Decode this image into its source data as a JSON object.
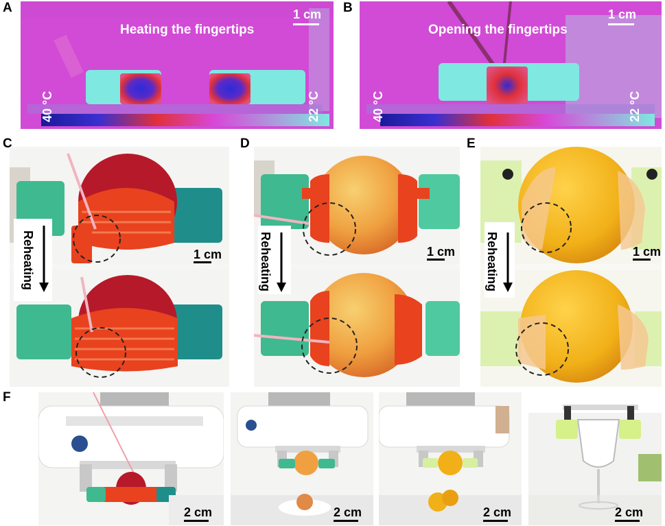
{
  "panels": {
    "A": {
      "label": "A",
      "title": "Heating the fingertips",
      "scale": "1 cm",
      "temp_high": "40 °C",
      "temp_low": "22 °C"
    },
    "B": {
      "label": "B",
      "title": "Opening the fingertips",
      "scale": "1 cm",
      "temp_high": "40 °C",
      "temp_low": "22 °C"
    },
    "C": {
      "label": "C",
      "arrow_text": "Reheating",
      "scale": "1 cm"
    },
    "D": {
      "label": "D",
      "arrow_text": "Reheating",
      "scale": "1 cm"
    },
    "E": {
      "label": "E",
      "arrow_text": "Reheating",
      "scale": "1 cm"
    },
    "F": {
      "label": "F",
      "scales": [
        "2 cm",
        "2 cm",
        "2 cm",
        "2 cm"
      ]
    }
  },
  "colors": {
    "thermal_bg": "#d847d8",
    "gripper_cyan": "#7fe8e0",
    "hot_red": "#e0303a",
    "hot_blue": "#3a2fd0",
    "strawberry": "#b5192a",
    "peach": "#f0a040",
    "orange": "#f1b018",
    "finger_red": "#e8421f",
    "finger_green": "#3fb990",
    "finger_teal": "#1f8e8a"
  }
}
